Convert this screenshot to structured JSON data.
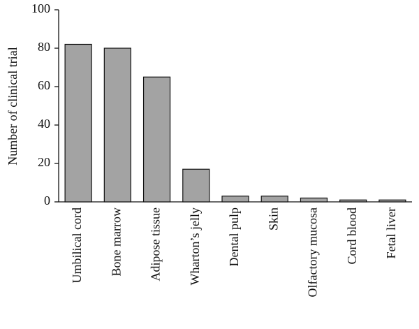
{
  "chart_data": {
    "type": "bar",
    "y_label": "Number of clinical trial",
    "categories": [
      "Umbilical cord",
      "Bone marrow",
      "Adipose tissue",
      "Wharton’s jelly",
      "Dental pulp",
      "Skin",
      "Olfactory mucosa",
      "Cord blood",
      "Fetal liver"
    ],
    "values": [
      82,
      80,
      65,
      17,
      3,
      3,
      2,
      1,
      1
    ],
    "color": "#a3a3a3",
    "ylim": [
      0,
      100
    ],
    "yticks": [
      0,
      20,
      40,
      60,
      80,
      100
    ],
    "grid": false
  }
}
